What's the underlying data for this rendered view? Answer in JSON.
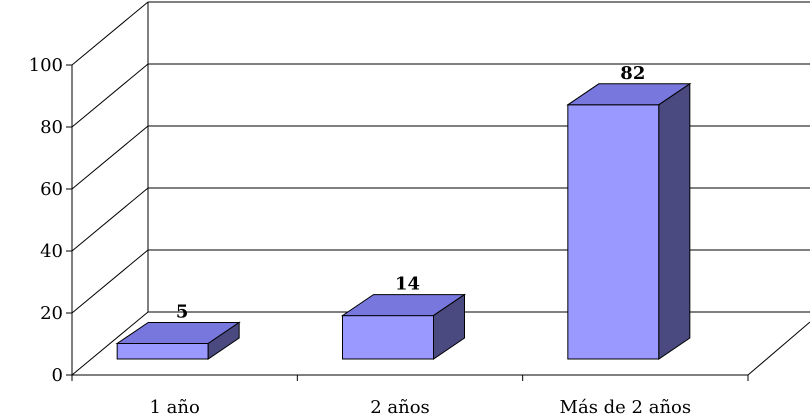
{
  "chart_data": {
    "type": "bar",
    "categories": [
      "1 año",
      "2 años",
      "Más de 2 años"
    ],
    "values": [
      5,
      14,
      82
    ],
    "data_labels": [
      "5",
      "14",
      "82"
    ],
    "ylim": [
      0,
      100
    ],
    "yticks": [
      "0",
      "20",
      "40",
      "60",
      "80",
      "100"
    ],
    "grid": true,
    "three_d": true,
    "colors": {
      "bar_front": "#9999ff",
      "bar_top": "#7777dd",
      "bar_side": "#4a4a80",
      "bar_stroke": "#000000",
      "grid": "#000000"
    }
  }
}
